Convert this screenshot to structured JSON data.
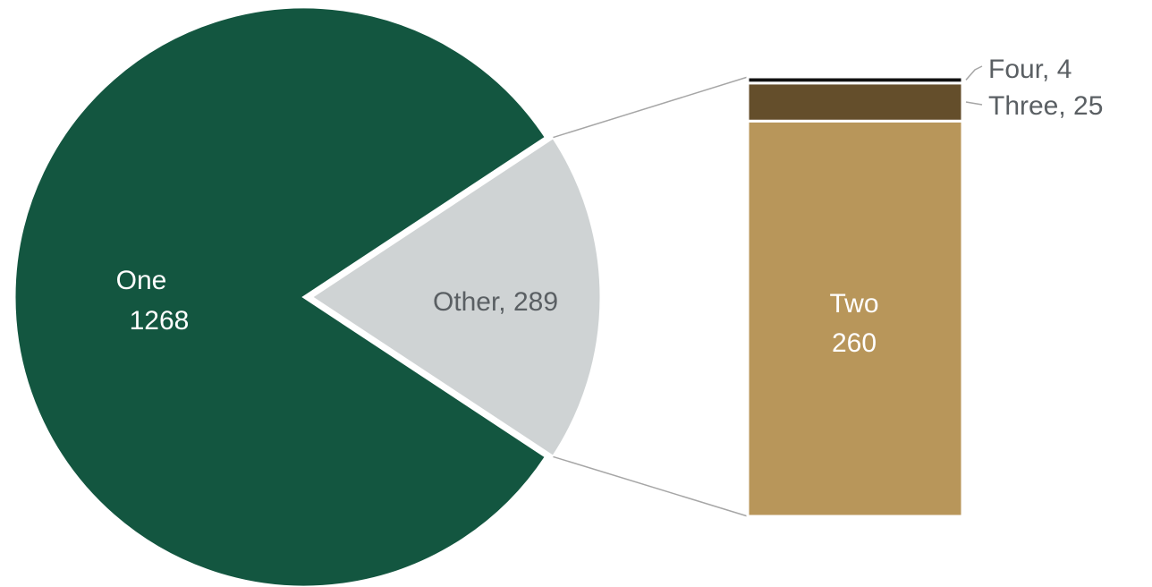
{
  "chart_data": {
    "type": "pie",
    "subtype": "bar-of-pie",
    "pie": {
      "slices": [
        {
          "name": "One",
          "value": 1268,
          "color": "#135640",
          "label_color": "#ffffff"
        },
        {
          "name": "Other",
          "value": 289,
          "color": "#cfd3d4",
          "label_color": "#5a5f63"
        }
      ]
    },
    "bar": {
      "segments": [
        {
          "name": "Two",
          "value": 260,
          "color": "#b8965a",
          "label_color": "#ffffff"
        },
        {
          "name": "Three",
          "value": 25,
          "color": "#644e2b",
          "label_color": "#5a5f63"
        },
        {
          "name": "Four",
          "value": 4,
          "color": "#111111",
          "label_color": "#5a5f63"
        }
      ]
    },
    "labels": {
      "one_name": "One",
      "one_value": "1268",
      "other": "Other, 289",
      "two_name": "Two",
      "two_value": "260",
      "three": "Three, 25",
      "four": "Four, 4"
    },
    "connector_color": "#a6a6a6",
    "leader_color": "#a6a6a6"
  }
}
